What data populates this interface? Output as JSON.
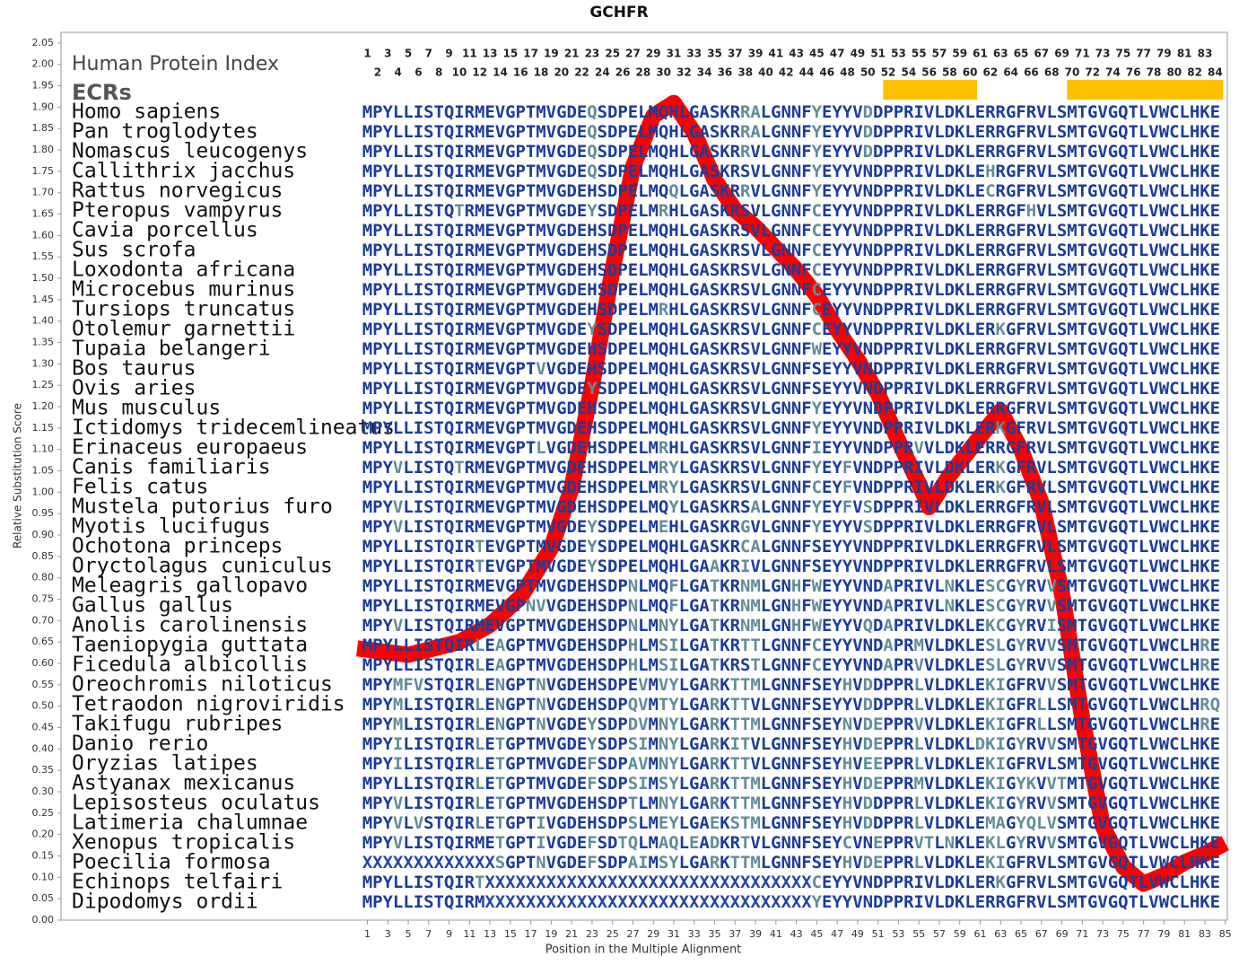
{
  "chart_data": {
    "type": "line",
    "title": "GCHFR",
    "xlabel": "Position in the Multiple Alignment",
    "ylabel": "Relative Substitution Score",
    "color": "#ff0000",
    "x": [
      0,
      5,
      10,
      13,
      16,
      19,
      21,
      23,
      25,
      27,
      29,
      31,
      33,
      35,
      37,
      39,
      41,
      43,
      45,
      47,
      49,
      51,
      53,
      55,
      56,
      58,
      60,
      62,
      63,
      65,
      67,
      69,
      71,
      73,
      75,
      77,
      79,
      81,
      83,
      85
    ],
    "values": [
      0.635,
      0.62,
      0.65,
      0.69,
      0.755,
      0.87,
      1.01,
      1.25,
      1.52,
      1.76,
      1.88,
      1.91,
      1.84,
      1.73,
      1.66,
      1.62,
      1.57,
      1.52,
      1.46,
      1.38,
      1.31,
      1.23,
      1.12,
      1.02,
      0.965,
      1.04,
      1.1,
      1.16,
      1.19,
      1.1,
      0.975,
      0.765,
      0.47,
      0.22,
      0.125,
      0.085,
      0.105,
      0.135,
      0.155,
      0.18
    ],
    "xlim": [
      -29,
      85.2
    ],
    "ylim": [
      0,
      2.075
    ],
    "xticks": [
      1,
      3,
      5,
      7,
      9,
      11,
      13,
      15,
      17,
      19,
      21,
      23,
      25,
      27,
      29,
      31,
      33,
      35,
      37,
      39,
      41,
      43,
      45,
      47,
      49,
      51,
      53,
      55,
      57,
      59,
      61,
      63,
      65,
      67,
      69,
      71,
      73,
      75,
      77,
      79,
      81,
      83,
      85
    ],
    "yticks": [
      {
        "value": 0,
        "label": "0.00"
      },
      {
        "value": 0.05,
        "label": "0.05"
      },
      {
        "value": 0.1,
        "label": "0.10"
      },
      {
        "value": 0.15,
        "label": "0.15"
      },
      {
        "value": 0.2,
        "label": "0.20"
      },
      {
        "value": 0.25,
        "label": "0.25"
      },
      {
        "value": 0.3,
        "label": "0.30"
      },
      {
        "value": 0.35,
        "label": "0.35"
      },
      {
        "value": 0.4,
        "label": "0.40"
      },
      {
        "value": 0.45,
        "label": "0.45"
      },
      {
        "value": 0.5,
        "label": "0.50"
      },
      {
        "value": 0.55,
        "label": "0.55"
      },
      {
        "value": 0.6,
        "label": "0.60"
      },
      {
        "value": 0.65,
        "label": "0.65"
      },
      {
        "value": 0.7,
        "label": "0.70"
      },
      {
        "value": 0.75,
        "label": "0.75"
      },
      {
        "value": 0.8,
        "label": "0.80"
      },
      {
        "value": 0.85,
        "label": "0.85"
      },
      {
        "value": 0.9,
        "label": "0.90"
      },
      {
        "value": 0.95,
        "label": "0.95"
      },
      {
        "value": 1,
        "label": "1.00"
      },
      {
        "value": 1.05,
        "label": "1.05"
      },
      {
        "value": 1.1,
        "label": "1.10"
      },
      {
        "value": 1.15,
        "label": "1.15"
      },
      {
        "value": 1.2,
        "label": "1.20"
      },
      {
        "value": 1.25,
        "label": "1.25"
      },
      {
        "value": 1.3,
        "label": "1.30"
      },
      {
        "value": 1.35,
        "label": "1.35"
      },
      {
        "value": 1.4,
        "label": "1.40"
      },
      {
        "value": 1.45,
        "label": "1.45"
      },
      {
        "value": 1.5,
        "label": "1.50"
      },
      {
        "value": 1.55,
        "label": "1.55"
      },
      {
        "value": 1.6,
        "label": "1.60"
      },
      {
        "value": 1.65,
        "label": "1.65"
      },
      {
        "value": 1.7,
        "label": "1.70"
      },
      {
        "value": 1.75,
        "label": "1.75"
      },
      {
        "value": 1.8,
        "label": "1.80"
      },
      {
        "value": 1.85,
        "label": "1.85"
      },
      {
        "value": 1.9,
        "label": "1.90"
      },
      {
        "value": 1.95,
        "label": "1.95"
      },
      {
        "value": 2,
        "label": "2.00"
      },
      {
        "value": 2.05,
        "label": "2.05"
      }
    ],
    "alignment": {
      "index_label": "Human Protein Index",
      "ecr_label": "ECRs",
      "ecr_color": "#ffc000",
      "ecrs": [
        [
          51.5,
          60.7
        ],
        [
          69.5,
          84.8
        ]
      ],
      "positions": [
        1,
        2,
        3,
        4,
        5,
        6,
        7,
        8,
        9,
        10,
        11,
        12,
        13,
        14,
        15,
        16,
        17,
        18,
        19,
        20,
        21,
        22,
        23,
        24,
        25,
        26,
        27,
        28,
        29,
        30,
        31,
        32,
        33,
        34,
        35,
        36,
        37,
        38,
        39,
        40,
        41,
        42,
        43,
        44,
        45,
        46,
        47,
        48,
        49,
        50,
        51,
        52,
        53,
        54,
        55,
        56,
        57,
        58,
        59,
        60,
        61,
        62,
        63,
        64,
        65,
        66,
        67,
        68,
        69,
        70,
        71,
        72,
        73,
        74,
        75,
        76,
        77,
        78,
        79,
        80,
        81,
        82,
        83,
        84
      ],
      "rows": [
        {
          "species": "Homo sapiens",
          "sequence": "MPYLLISTQIRMEVGPTMVGDEQSDPELMQHLGASKRRALGNNFYEYYVDDPPRIVLDKLERRGFRVLSMTGVGQTLVWCLHKE"
        },
        {
          "species": "Pan troglodytes",
          "sequence": "MPYLLISTQIRMEVGPTMVGDEQSDPELMQHLGASKRRALGNNFYEYYVDDPPRIVLDKLERRGFRVLSMTGVGQTLVWCLHKE"
        },
        {
          "species": "Nomascus leucogenys",
          "sequence": "MPYLLISTQIRMEVGPTMVGDEQSDPELMQHLGASKRRVLGNNFYEYYVDDPPRIVLDKLERRGFRVLSMTGVGQTLVWCLHKE"
        },
        {
          "species": "Callithrix jacchus",
          "sequence": "MPYLLISTQIRMEVGPTMVGDEQSDPELMQHLGASKRSVLGNNFYEYYVNDPPRIVLDKLEHRGFRVLSMTGVGQTLVWCLHKE"
        },
        {
          "species": "Rattus norvegicus",
          "sequence": "MPYLLISTQIRMEVGPTMVGDEHSDPELMQQLGASKRRVLGNNFYEYYVNDPPRIVLDKLECRGFRVLSMTGVGQTLVWCLHKE"
        },
        {
          "species": "Pteropus vampyrus",
          "sequence": "MPYLLISTQTRMEVGPTMVGDEYSDPELMRHLGASKRSVLGNNFCEYYVNDPPRIVLDKLERRGFHVLSMTGVGQTLVWCLHKE"
        },
        {
          "species": "Cavia porcellus",
          "sequence": "MPYLLISTQIRMEVGPTMVGDEHSDPELMQHLGASKRSVLGNNFCEYYVNDPPRIVLDKLERRGFRVLSMTGVGQTLVWCLHKE"
        },
        {
          "species": "Sus scrofa",
          "sequence": "MPYLLISTQIRMEVGPTMVGDEHSDPELMQHLGASKRSVLGNNFCEYYVNDPPRIVLDKLERRGFRVLSMTGVGQTLVWCLHKE"
        },
        {
          "species": "Loxodonta africana",
          "sequence": "MPYLLISTQIRMEVGPTMVGDEHSDPELMQHLGASKRSVLGNNFCEYYVNDPPRIVLDKLERRGFRVLSMTGVGQTLVWCLHKE"
        },
        {
          "species": "Microcebus murinus",
          "sequence": "MPYLLISTQIRMEVGPTMVGDEHSDPELMQHLGASKRSVLGNNFCEYYVNDPPRIVLDKLERRGFRVLSMTGVGQTLVWCLHKE"
        },
        {
          "species": "Tursiops truncatus",
          "sequence": "MPYLLISTQIRMEVGPTMVGDEHSDPELMRHLGASKRSVLGNNFCEYYVNDPPRIVLDKLERRGFRVLSMTGVGQTLVWCLHKE"
        },
        {
          "species": "Otolemur garnettii",
          "sequence": "MPYLLISTQIRMEVGPTMVGDEYSDPELMQHLGASKRSVLGNNFCEYYVNDPPRIVLDKLERKGFRVLSMTGVGQTLVWCLHKE"
        },
        {
          "species": "Tupaia belangeri",
          "sequence": "MPYLLISTQIRMEVGPTMVGDEHSDPELMQHLGASKRSVLGNNFWEYYVNDPPRIVLDKLERRGFRVLSMTGVGQTLVWCLHKE"
        },
        {
          "species": "Bos taurus",
          "sequence": "MPYLLISTQIRMEVGPTVVGDEHSDPELMQHLGASKRSVLGNNFSEYYVNDPPRIVLDKLERRGFRVLSMTGVGQTLVWCLHKE"
        },
        {
          "species": "Ovis aries",
          "sequence": "MPYLLISTQIRMEVGPTMVGDEYSDPELMQHLGASKRSVLGNNFSEYYVNDPPRIVLDKLERRGFRVLSMTGVGQTLVWCLHKE"
        },
        {
          "species": "Mus musculus",
          "sequence": "MPYLLISTQIRMEVGPTMVGDEHSDPELMQHLGASKRSVLGNNFYEYYVNDPPRIVLDKLERRGFRVLSMTGVGQTLVWCLHKE"
        },
        {
          "species": "Ictidomys tridecemlineatus",
          "sequence": "MPYLLISTQIRMEVGPTMVGDEHSDPELMQHLGASKRSVLGNNFYEYYVNDPPRIVLDKLERKGFRVLSMTGVGQTLVWCLHKE"
        },
        {
          "species": "Erinaceus europaeus",
          "sequence": "MPYLLISTQIRMEVGPTLVGDEHSDPELMRHLGASKRSVLGNNFIEYYVNDPPRVVLDKLERRGFRVLSMTGVGQTLVWCLHKE"
        },
        {
          "species": "Canis familiaris",
          "sequence": "MPYVLISTQTRMEVGPTMVGDEHSDPELMRYLGASKRSVLGNNFYEYFVNDPPRIVLDKLERKGFRVLSMTGVGQTLVWCLHKE"
        },
        {
          "species": "Felis catus",
          "sequence": "MPYLLISTQIRMEVGPTMVGDEHSDPELMRYLGASKRSVLGNNFCEYFVNDPPRIVLDKLERKGFRVLSMTGVGQTLVWCLHKE"
        },
        {
          "species": "Mustela putorius furo",
          "sequence": "MPYVLISTQIRMEVGPTMVGDEHSDPELMQYLGASKRSALGNNFYEYFVSDPPRIVLDKLERRGFRVLSMTGVGQTLVWCLHKE"
        },
        {
          "species": "Myotis lucifugus",
          "sequence": "MPYVLISTQIRMEVGPTMVGDEYSDPELMEHLGASKRGVLGNNFYEYYVSDPPRIVLDKLERRGFRVLSMTGVGQTLVWCLHKE"
        },
        {
          "species": "Ochotona princeps",
          "sequence": "MPYLLISTQIRTEVGPTMVGDEYSDPELMQHLGASKRCALGNNFSEYYVNDPPRIVLDKLERRGFRVLSMTGVGQTLVWCLHKE"
        },
        {
          "species": "Oryctolagus cuniculus",
          "sequence": "MPYLLISTQIRTEVGPTMVGDEYSDPELMQHLGAAKRIVLGNNFSEYYVNDPPRIVLDKLERRGFRVLSMTGVGQTLVWCLHKE"
        },
        {
          "species": "Meleagris gallopavo",
          "sequence": "MPYLLISTQIRMEVGPTMVGDEHSDPNLMQFLGATKRNMLGNHFWEYYVNDAPRIVLNKLESCGYRVVSMTGVGQTLVWCLHKE"
        },
        {
          "species": "Gallus gallus",
          "sequence": "MPYLLISTQIRMEVGPNVVGDEHSDPNLMQFLGATKRNMLGNHFWEYYVNDAPRIVLNKLESCGYRVVSMTGVGQTLVWCLHKE"
        },
        {
          "species": "Anolis carolinensis",
          "sequence": "MPYVLISTQIRMEVGPTMVGDEHSDPNLMNYLGATKRNMLGNHFWEYYVQDAPRIVLDKLEKCGYRVISMTGVGQTLVWCLHKE"
        },
        {
          "species": "Taeniopygia guttata",
          "sequence": "MPYLLISTQIRLEAGPTMVGDEHSDPHLMSILGATKRTTLGNNFCEYYVNDAPRMVLDKLESLGYRVVSMTGVGQTLVWCLHRE"
        },
        {
          "species": "Ficedula albicollis",
          "sequence": "MPYLLISTQIRLEAGPTMVGDEHSDPHLMSILGATKRSTLGNNFCEYYVNDAPRVVLDKLESLGYRVVSMTGVGQTLVWCLHRE"
        },
        {
          "species": "Oreochromis niloticus",
          "sequence": "MPYMFVSTQIRLENGPTNVGDEHSDPEVMVYLGARKTTMLGNNFSEYHVDDPPRLVLDKLEKIGFRVVSMTGVGQTLVWCLHKE"
        },
        {
          "species": "Tetraodon nigroviridis",
          "sequence": "MPYMLISTQIRLENGPTNVGDEHSDPQVMTYLGARKTTVLGNNFSEYYVDDPPRLVLDKLEKIGFRLLSMTGVGQTLVWCLHRQ"
        },
        {
          "species": "Takifugu rubripes",
          "sequence": "MPYMLISTQIRLENGPTNVGDEYSDPDVMNYLGARKTTMLGNNFSEYNVDEPPRVVLDKLEKIGFRLLSMTGVGQTLVWCLHRE"
        },
        {
          "species": "Danio rerio",
          "sequence": "MPYILISTQIRLETGPTMVGDEYSDPSIMNYLGARKITVLGNNFSEYHVDEPPRLVLDKLDKIGYRVVSMTGVGQTLVWCLHKE"
        },
        {
          "species": "Oryzias latipes",
          "sequence": "MPYILISTQIRLETGPTMVGDEFSDPAVMNYLGARKTTVLGNNFSEYHVEEPPRLVLDKLEKIGFRVLSMTGVGQTLVWCLHKE"
        },
        {
          "species": "Astyanax mexicanus",
          "sequence": "MPYLLISTQIRLETGPTMVGDEFSDPSIMSYLGARKTTMLGNNFSEYHVDEPPRMVLDKLEKIGYKVVTMTGVGQTLVWCLHKE"
        },
        {
          "species": "Lepisosteus oculatus",
          "sequence": "MPYVLISTQIRLETGPTMVGDEHSDPTLMNYLGARKTTMLGNNFSEYHVDDPPRLVLDKLEKIGYRVVSMTGVGQTLVWCLHKE"
        },
        {
          "species": "Latimeria chalumnae",
          "sequence": "MPYVLVSTQIRLETGPTIVGDEHSDPSLMEYLGAEKSTMLGNNFSEYHVDDPPRLVLDKLEMAGYQLVSMTGVGQTLVWCLHKE"
        },
        {
          "species": "Xenopus tropicalis",
          "sequence": "MPYVLISTQIRMETGPTIVGDEFSDTQLMAQLEADKRTVLGNNFSEYCVNEPPRVTLNKLEKLGYRVVSMTGVGQTLVWCLHKE"
        },
        {
          "species": "Poecilia formosa",
          "sequence": "XXXXXXXXXXXXXSGPTNVGDEFSDPAIMSYLGARKTTMLGNNFSEYHVDEPPRLVLDKLEKIGFRVLSMTGVGQTLVWCLHKE"
        },
        {
          "species": "Echinops telfairi",
          "sequence": "MPYLLISTQIRTXXXXXXXXXXXXXXXXXXXXXXXXXXXXXXXXCEYYVNDPPRIVLDKLERKGFRVLSMTGVGQTLVWCLHKE"
        },
        {
          "species": "Dipodomys ordii",
          "sequence": "MPYLLISTQIRMXXXXXXXXXXXXXXXXXXXXXXXXXXXXXXXXYEYYVNDPPRIVLDKLERRGFRVLSMTGVGQTLVWCLHKE"
        }
      ]
    }
  }
}
